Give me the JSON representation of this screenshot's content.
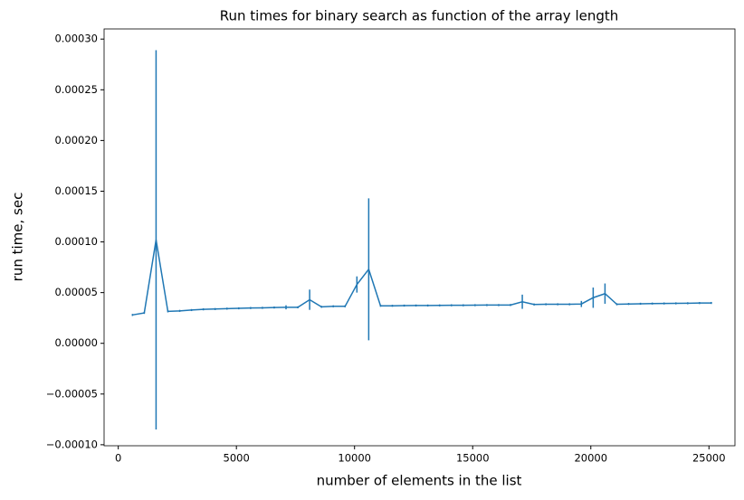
{
  "chart_data": {
    "type": "errorbar-line",
    "title": "Run times for binary search as function of the array length",
    "x_label": "number of elements in the list",
    "y_label": "run time, sec",
    "color": "#1f77b4",
    "x": [
      600,
      1100,
      1600,
      2100,
      2600,
      3100,
      3600,
      4100,
      4600,
      5100,
      5600,
      6100,
      6600,
      7100,
      7600,
      8100,
      8600,
      9100,
      9600,
      10100,
      10600,
      11100,
      11600,
      12100,
      12600,
      13100,
      13600,
      14100,
      14600,
      15100,
      15600,
      16100,
      16600,
      17100,
      17600,
      18100,
      18600,
      19100,
      19600,
      20100,
      20600,
      21100,
      21600,
      22100,
      22600,
      23100,
      23600,
      24100,
      24600,
      25100
    ],
    "values": [
      2.8e-05,
      3e-05,
      0.000102,
      3.15e-05,
      3.2e-05,
      3.28e-05,
      3.35e-05,
      3.38e-05,
      3.42e-05,
      3.45e-05,
      3.48e-05,
      3.5e-05,
      3.53e-05,
      3.55e-05,
      3.55e-05,
      4.3e-05,
      3.6e-05,
      3.65e-05,
      3.65e-05,
      5.8e-05,
      7.3e-05,
      3.7e-05,
      3.7e-05,
      3.72e-05,
      3.73e-05,
      3.73e-05,
      3.74e-05,
      3.75e-05,
      3.75e-05,
      3.76e-05,
      3.77e-05,
      3.77e-05,
      3.78e-05,
      4.1e-05,
      3.83e-05,
      3.85e-05,
      3.85e-05,
      3.85e-05,
      3.88e-05,
      4.5e-05,
      4.9e-05,
      3.85e-05,
      3.88e-05,
      3.9e-05,
      3.92e-05,
      3.93e-05,
      3.94e-05,
      3.95e-05,
      3.97e-05,
      3.98e-05
    ],
    "errors": [
      1e-06,
      1e-06,
      0.000187,
      1e-06,
      1e-06,
      1e-06,
      1e-06,
      1e-06,
      1e-06,
      1e-06,
      1e-06,
      1e-06,
      1e-06,
      2e-06,
      1e-06,
      1e-05,
      1e-06,
      1e-06,
      1e-06,
      8e-06,
      7e-05,
      1e-06,
      1e-06,
      1e-06,
      1e-06,
      1e-06,
      1e-06,
      1e-06,
      1e-06,
      1e-06,
      1e-06,
      1e-06,
      1e-06,
      7e-06,
      1e-06,
      1e-06,
      1e-06,
      1e-06,
      3e-06,
      1e-05,
      1e-05,
      1e-06,
      1e-06,
      1e-06,
      1e-06,
      1e-06,
      1e-06,
      1e-06,
      1e-06,
      1e-06
    ],
    "xlim": [
      -600,
      26100
    ],
    "ylim": [
      -0.000101,
      0.00031
    ],
    "xticks": [
      0,
      5000,
      10000,
      15000,
      20000,
      25000
    ],
    "yticks": [
      {
        "value": -0.0001,
        "label": "−0.00010"
      },
      {
        "value": -5e-05,
        "label": "−0.00005"
      },
      {
        "value": 0,
        "label": "0.00000"
      },
      {
        "value": 5e-05,
        "label": "0.00005"
      },
      {
        "value": 0.0001,
        "label": "0.00010"
      },
      {
        "value": 0.00015,
        "label": "0.00015"
      },
      {
        "value": 0.0002,
        "label": "0.00020"
      },
      {
        "value": 0.00025,
        "label": "0.00025"
      },
      {
        "value": 0.0003,
        "label": "0.00030"
      }
    ]
  }
}
